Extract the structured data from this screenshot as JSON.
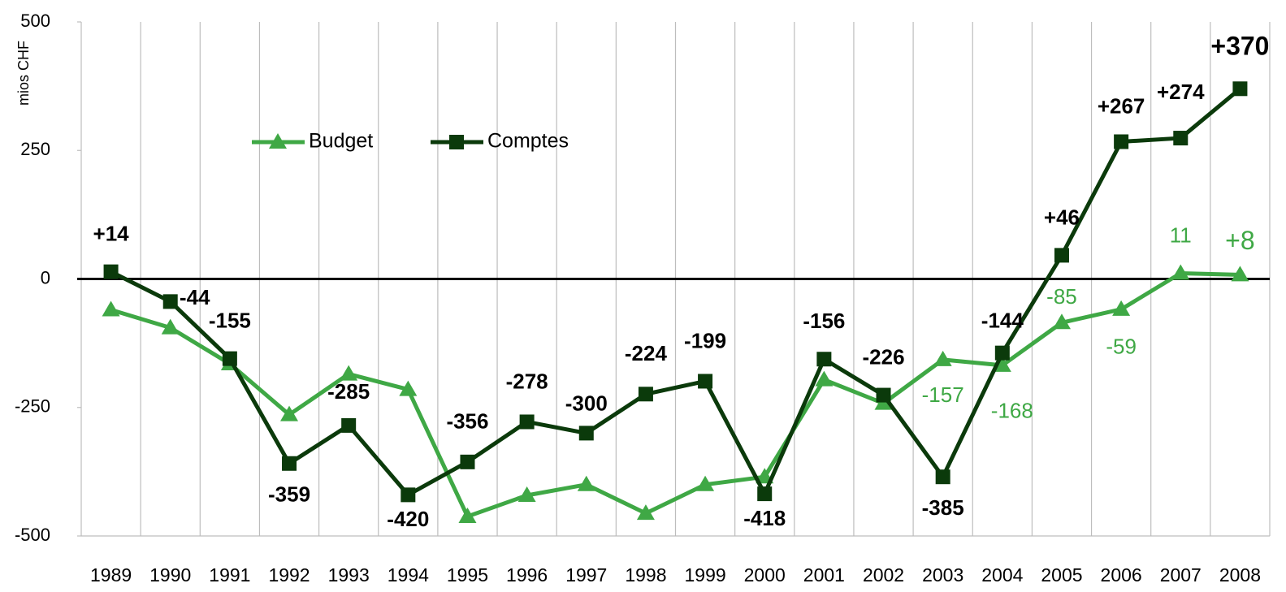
{
  "chart_data": {
    "type": "line",
    "ylabel": "mios CHF",
    "categories": [
      "1989",
      "1990",
      "1991",
      "1992",
      "1993",
      "1994",
      "1995",
      "1996",
      "1997",
      "1998",
      "1999",
      "2000",
      "2001",
      "2002",
      "2003",
      "2004",
      "2005",
      "2006",
      "2007",
      "2008"
    ],
    "series": [
      {
        "name": "Budget",
        "color": "#3fa845",
        "marker": "triangle",
        "values": [
          -60,
          -95,
          -165,
          -264,
          -185,
          -215,
          -462,
          -421,
          -400,
          -456,
          -400,
          -385,
          -196,
          -242,
          -157,
          -168,
          -85,
          -59,
          11,
          8
        ],
        "value_labels": [
          null,
          null,
          null,
          null,
          null,
          null,
          null,
          null,
          null,
          null,
          null,
          null,
          null,
          null,
          "-157",
          "-168",
          "-85",
          "-59",
          "11",
          "+8"
        ]
      },
      {
        "name": "Comptes",
        "color": "#0b3a0b",
        "marker": "square",
        "values": [
          14,
          -44,
          -155,
          -359,
          -285,
          -420,
          -356,
          -278,
          -300,
          -224,
          -199,
          -418,
          -156,
          -226,
          -385,
          -144,
          46,
          267,
          274,
          370
        ],
        "value_labels": [
          "+14",
          "-44",
          "-155",
          "-359",
          "-285",
          "-420",
          "-356",
          "-278",
          "-300",
          "-224",
          "-199",
          "-418",
          "-156",
          "-226",
          "-385",
          "-144",
          "+46",
          "+267",
          "+274",
          "+370"
        ]
      }
    ],
    "ylim": [
      -500,
      500
    ],
    "yticks": [
      -500,
      -250,
      0,
      250,
      500
    ],
    "legend": "top-left",
    "grid": "vertical"
  }
}
